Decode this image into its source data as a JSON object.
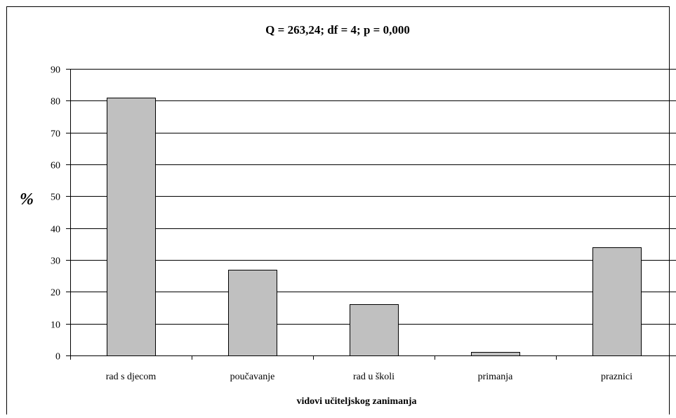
{
  "chart_data": {
    "type": "bar",
    "title": "Q = 263,24; df = 4; p = 0,000",
    "xlabel": "vidovi učiteljskog zanimanja",
    "ylabel": "%",
    "categories": [
      "rad s djecom",
      "poučavanje",
      "rad u školi",
      "primanja",
      "praznici"
    ],
    "values": [
      81,
      27,
      16,
      1,
      34
    ],
    "ylim": [
      0,
      90
    ],
    "yticks": [
      "0",
      "10",
      "20",
      "30",
      "40",
      "50",
      "60",
      "70",
      "80",
      "90"
    ],
    "grid": true,
    "legend": "none",
    "colors": {
      "bar_fill": "#c0c0c0",
      "bar_stroke": "#000000",
      "axis": "#000000",
      "grid": "#000000",
      "background": "#ffffff"
    }
  }
}
